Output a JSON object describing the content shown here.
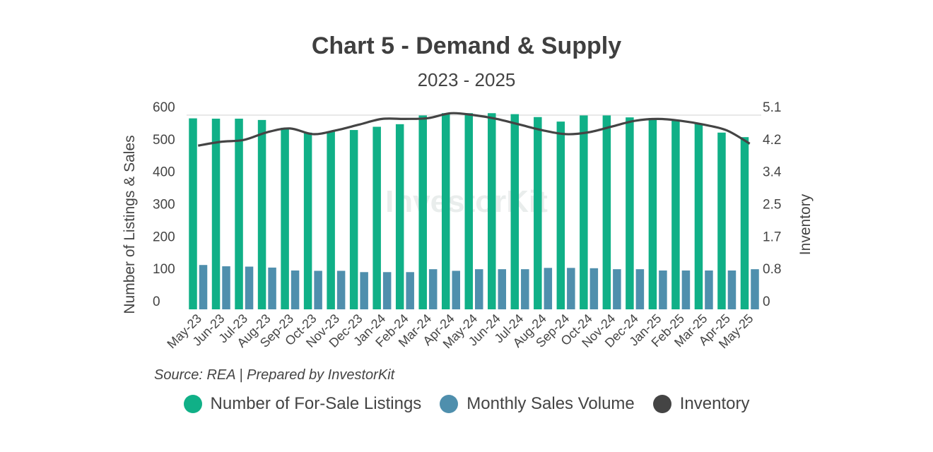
{
  "chart_data": {
    "type": "bar",
    "title": "Chart 5 - Demand & Supply",
    "subtitle": "2023 - 2025",
    "ylabel": "Number of Listings & Sales",
    "y2label": "Inventory",
    "ylim": [
      0,
      600
    ],
    "y2lim": [
      0,
      5.1
    ],
    "yticks": [
      "0",
      "100",
      "200",
      "300",
      "400",
      "500",
      "600"
    ],
    "y2ticks": [
      "0",
      "0.8",
      "1.7",
      "2.5",
      "3.4",
      "4.2",
      "5.1"
    ],
    "categories": [
      "May-23",
      "Jun-23",
      "Jul-23",
      "Aug-23",
      "Sep-23",
      "Oct-23",
      "Nov-23",
      "Dec-23",
      "Jan-24",
      "Feb-24",
      "Mar-24",
      "Apr-24",
      "May-24",
      "Jun-24",
      "Jul-24",
      "Aug-24",
      "Sep-24",
      "Oct-24",
      "Nov-24",
      "Dec-24",
      "Jan-25",
      "Feb-25",
      "Mar-25",
      "Apr-25",
      "May-25"
    ],
    "series": [
      {
        "name": "Number of For-Sale Listings",
        "kind": "bar",
        "axis": "left",
        "color": "#10b087",
        "values": [
          590,
          589,
          589,
          585,
          561,
          546,
          550,
          554,
          564,
          572,
          599,
          606,
          606,
          606,
          603,
          594,
          580,
          599,
          599,
          593,
          591,
          583,
          575,
          546,
          532
        ]
      },
      {
        "name": "Monthly Sales Volume",
        "kind": "bar",
        "axis": "left",
        "color": "#4f8fad",
        "values": [
          137,
          133,
          132,
          129,
          120,
          119,
          119,
          115,
          115,
          115,
          124,
          119,
          124,
          124,
          124,
          128,
          128,
          127,
          124,
          124,
          120,
          120,
          120,
          120,
          124
        ]
      },
      {
        "name": "Inventory",
        "kind": "line",
        "axis": "right",
        "color": "#444444",
        "values": [
          4.3,
          4.4,
          4.45,
          4.65,
          4.75,
          4.6,
          4.7,
          4.85,
          5.0,
          5.0,
          5.02,
          5.15,
          5.1,
          5.0,
          4.85,
          4.7,
          4.6,
          4.65,
          4.8,
          4.95,
          5.0,
          4.95,
          4.85,
          4.7,
          4.35
        ]
      }
    ],
    "legend_position": "bottom-center",
    "source": "Source: REA | Prepared by InvestorKit",
    "watermark": "InvestorKit"
  }
}
